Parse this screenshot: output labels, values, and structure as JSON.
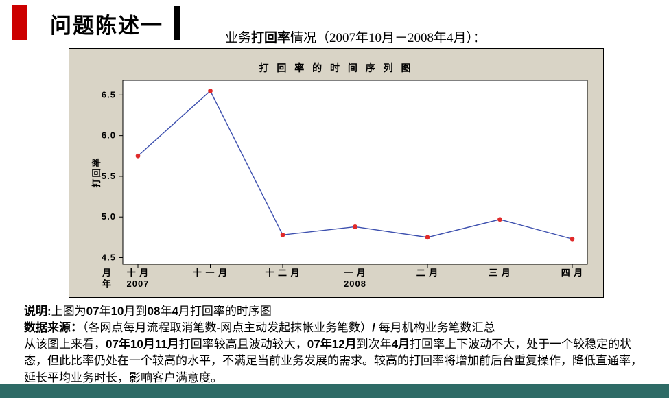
{
  "header": {
    "slide_title": "问题陈述一",
    "caption_segments": [
      {
        "text": "业务",
        "bold": false
      },
      {
        "text": "打回率",
        "bold": true
      },
      {
        "text": "情况（2007年10月－2008年4月）：",
        "bold": false
      }
    ]
  },
  "chart_data": {
    "type": "line",
    "title": "打 回 率   的 时 间 序 列 图",
    "ylabel": "打回率",
    "categories": [
      "十 月",
      "十 一 月",
      "十 二 月",
      "一 月",
      "二 月",
      "三 月",
      "四 月"
    ],
    "values": [
      5.75,
      6.55,
      4.78,
      4.88,
      4.75,
      4.97,
      4.73
    ],
    "yticks": [
      4.5,
      5.0,
      5.5,
      6.0,
      6.5
    ],
    "ylim": [
      4.42,
      6.68
    ],
    "x_axis_rows": {
      "month_label": "月",
      "year_label": "年",
      "years": [
        {
          "text": "2007",
          "index": 0
        },
        {
          "text": "2008",
          "index": 3
        }
      ]
    },
    "legend": "none",
    "grid": false,
    "colors": {
      "line": "#3c4fae",
      "point": "#e02a2a",
      "frame_bg": "#d9d4c6",
      "plot_bg": "#ffffff"
    }
  },
  "notes": {
    "paragraphs": [
      [
        {
          "text": "说明:",
          "bold": true
        },
        {
          "text": "上图为",
          "bold": false
        },
        {
          "text": "07",
          "bold": true
        },
        {
          "text": "年",
          "bold": false
        },
        {
          "text": "10",
          "bold": true
        },
        {
          "text": "月到",
          "bold": false
        },
        {
          "text": "08",
          "bold": true
        },
        {
          "text": "年",
          "bold": false
        },
        {
          "text": "4",
          "bold": true
        },
        {
          "text": "月打回率的时序图",
          "bold": false
        }
      ],
      [
        {
          "text": "数据来源：",
          "bold": true
        },
        {
          "text": "（各网点每月流程取消笔数-网点主动发起抹帐业务笔数）",
          "bold": false
        },
        {
          "text": "/ ",
          "bold": true
        },
        {
          "text": "每月机构业务笔数汇总",
          "bold": false
        }
      ],
      [
        {
          "text": "从该图上来看，",
          "bold": false
        },
        {
          "text": "07年10月11月",
          "bold": true
        },
        {
          "text": "打回率较高且波动较大，",
          "bold": false
        },
        {
          "text": "07年12月",
          "bold": true
        },
        {
          "text": "到次年",
          "bold": false
        },
        {
          "text": "4月",
          "bold": true
        },
        {
          "text": "打回率上下波动不大，处于一个较稳定的状态，但此比率仍处在一个较高的水平，不满足当前业务发展的需求。较高的打回率将增加前后台重复操作，降低直通率，延长平均业务时长，影响客户满意度。",
          "bold": false
        }
      ]
    ]
  },
  "colors": {
    "accent_red": "#cc0000",
    "title_bar_black": "#000000",
    "bottom_bar": "#2e6b66"
  }
}
